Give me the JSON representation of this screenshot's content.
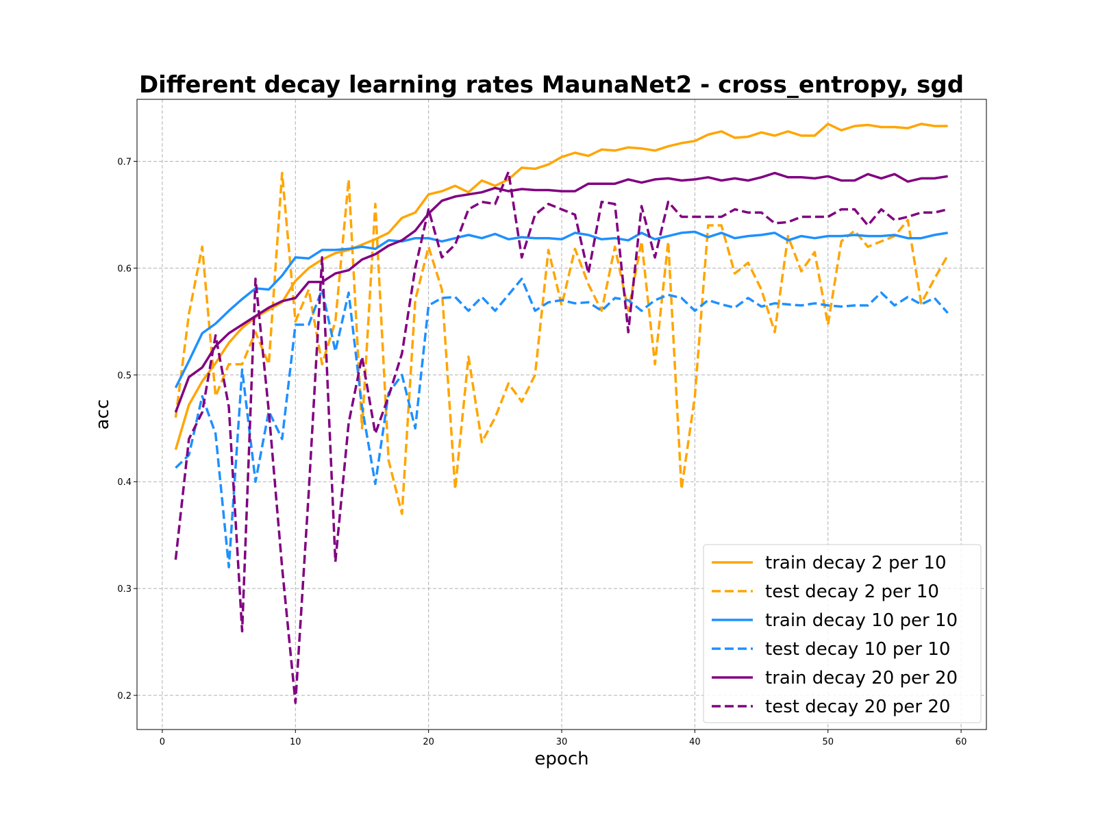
{
  "chart_data": {
    "type": "line",
    "title": "Different decay learning rates MaunaNet2 - cross_entropy, sgd",
    "xlabel": "epoch",
    "ylabel": "acc",
    "xlim": [
      -1.9,
      61.9
    ],
    "ylim": [
      0.168,
      0.758
    ],
    "xticks": [
      0,
      10,
      20,
      30,
      40,
      50,
      60
    ],
    "xtick_labels": [
      "0",
      "10",
      "20",
      "30",
      "40",
      "50",
      "60"
    ],
    "yticks": [
      0.2,
      0.3,
      0.4,
      0.5,
      0.6,
      0.7
    ],
    "ytick_labels": [
      "0.2",
      "0.3",
      "0.4",
      "0.5",
      "0.6",
      "0.7"
    ],
    "grid": true,
    "legend_position": "bottom-right",
    "x": [
      1,
      2,
      3,
      4,
      5,
      6,
      7,
      8,
      9,
      10,
      11,
      12,
      13,
      14,
      15,
      16,
      17,
      18,
      19,
      20,
      21,
      22,
      23,
      24,
      25,
      26,
      27,
      28,
      29,
      30,
      31,
      32,
      33,
      34,
      35,
      36,
      37,
      38,
      39,
      40,
      41,
      42,
      43,
      44,
      45,
      46,
      47,
      48,
      49,
      50,
      51,
      52,
      53,
      54,
      55,
      56,
      57,
      58,
      59
    ],
    "series": [
      {
        "name": "train decay 2 per 10",
        "color": "#ffa500",
        "style": "solid",
        "values": [
          0.43,
          0.472,
          0.494,
          0.511,
          0.53,
          0.544,
          0.554,
          0.561,
          0.568,
          0.588,
          0.6,
          0.608,
          0.614,
          0.617,
          0.622,
          0.627,
          0.633,
          0.647,
          0.652,
          0.669,
          0.672,
          0.677,
          0.671,
          0.682,
          0.677,
          0.683,
          0.694,
          0.693,
          0.697,
          0.704,
          0.708,
          0.705,
          0.711,
          0.71,
          0.713,
          0.712,
          0.71,
          0.714,
          0.717,
          0.719,
          0.725,
          0.728,
          0.722,
          0.723,
          0.727,
          0.724,
          0.728,
          0.724,
          0.724,
          0.735,
          0.729,
          0.733,
          0.734,
          0.732,
          0.732,
          0.731,
          0.735,
          0.733,
          0.733
        ]
      },
      {
        "name": "test decay 2 per 10",
        "color": "#ffa500",
        "style": "dashed",
        "values": [
          0.46,
          0.557,
          0.62,
          0.48,
          0.51,
          0.51,
          0.54,
          0.51,
          0.689,
          0.55,
          0.58,
          0.51,
          0.55,
          0.683,
          0.45,
          0.66,
          0.42,
          0.37,
          0.57,
          0.62,
          0.58,
          0.393,
          0.517,
          0.437,
          0.46,
          0.492,
          0.475,
          0.5,
          0.617,
          0.565,
          0.618,
          0.585,
          0.56,
          0.62,
          0.56,
          0.625,
          0.51,
          0.625,
          0.393,
          0.48,
          0.64,
          0.64,
          0.595,
          0.605,
          0.58,
          0.54,
          0.63,
          0.597,
          0.615,
          0.547,
          0.625,
          0.635,
          0.62,
          0.625,
          0.63,
          0.645,
          0.567,
          0.59,
          0.612
        ]
      },
      {
        "name": "train decay 10 per 10",
        "color": "#1e90ff",
        "style": "solid",
        "values": [
          0.488,
          0.513,
          0.539,
          0.548,
          0.56,
          0.571,
          0.581,
          0.58,
          0.593,
          0.61,
          0.609,
          0.617,
          0.617,
          0.618,
          0.62,
          0.618,
          0.626,
          0.625,
          0.628,
          0.628,
          0.625,
          0.628,
          0.631,
          0.628,
          0.632,
          0.627,
          0.629,
          0.628,
          0.628,
          0.627,
          0.633,
          0.631,
          0.627,
          0.628,
          0.626,
          0.633,
          0.627,
          0.63,
          0.633,
          0.634,
          0.629,
          0.633,
          0.628,
          0.63,
          0.631,
          0.633,
          0.626,
          0.63,
          0.628,
          0.63,
          0.63,
          0.631,
          0.63,
          0.63,
          0.631,
          0.628,
          0.628,
          0.631,
          0.633
        ]
      },
      {
        "name": "test decay 10 per 10",
        "color": "#1e90ff",
        "style": "dashed",
        "values": [
          0.413,
          0.425,
          0.48,
          0.445,
          0.32,
          0.505,
          0.4,
          0.466,
          0.44,
          0.547,
          0.547,
          0.58,
          0.522,
          0.577,
          0.47,
          0.398,
          0.483,
          0.5,
          0.45,
          0.565,
          0.572,
          0.573,
          0.56,
          0.573,
          0.56,
          0.575,
          0.59,
          0.56,
          0.568,
          0.57,
          0.567,
          0.568,
          0.56,
          0.572,
          0.57,
          0.56,
          0.57,
          0.575,
          0.572,
          0.56,
          0.57,
          0.566,
          0.563,
          0.572,
          0.564,
          0.567,
          0.566,
          0.565,
          0.567,
          0.565,
          0.564,
          0.565,
          0.565,
          0.577,
          0.565,
          0.573,
          0.566,
          0.572,
          0.558
        ]
      },
      {
        "name": "train decay 20 per 20",
        "color": "#800080",
        "style": "solid",
        "values": [
          0.465,
          0.498,
          0.507,
          0.527,
          0.539,
          0.547,
          0.555,
          0.563,
          0.569,
          0.572,
          0.587,
          0.587,
          0.595,
          0.598,
          0.608,
          0.613,
          0.621,
          0.626,
          0.635,
          0.651,
          0.663,
          0.667,
          0.669,
          0.671,
          0.675,
          0.672,
          0.674,
          0.673,
          0.673,
          0.672,
          0.672,
          0.679,
          0.679,
          0.679,
          0.683,
          0.68,
          0.683,
          0.684,
          0.682,
          0.683,
          0.685,
          0.682,
          0.684,
          0.682,
          0.685,
          0.689,
          0.685,
          0.685,
          0.684,
          0.686,
          0.682,
          0.682,
          0.688,
          0.684,
          0.688,
          0.681,
          0.684,
          0.684,
          0.686
        ]
      },
      {
        "name": "test decay 20 per 20",
        "color": "#800080",
        "style": "dashed",
        "values": [
          0.327,
          0.44,
          0.465,
          0.537,
          0.47,
          0.26,
          0.59,
          0.466,
          0.32,
          0.193,
          0.39,
          0.61,
          0.325,
          0.455,
          0.517,
          0.445,
          0.48,
          0.52,
          0.6,
          0.655,
          0.61,
          0.622,
          0.655,
          0.662,
          0.66,
          0.69,
          0.61,
          0.65,
          0.66,
          0.655,
          0.65,
          0.595,
          0.662,
          0.66,
          0.54,
          0.658,
          0.61,
          0.662,
          0.648,
          0.648,
          0.648,
          0.648,
          0.655,
          0.652,
          0.652,
          0.642,
          0.643,
          0.648,
          0.648,
          0.648,
          0.655,
          0.655,
          0.64,
          0.655,
          0.645,
          0.648,
          0.652,
          0.652,
          0.655
        ]
      }
    ]
  }
}
